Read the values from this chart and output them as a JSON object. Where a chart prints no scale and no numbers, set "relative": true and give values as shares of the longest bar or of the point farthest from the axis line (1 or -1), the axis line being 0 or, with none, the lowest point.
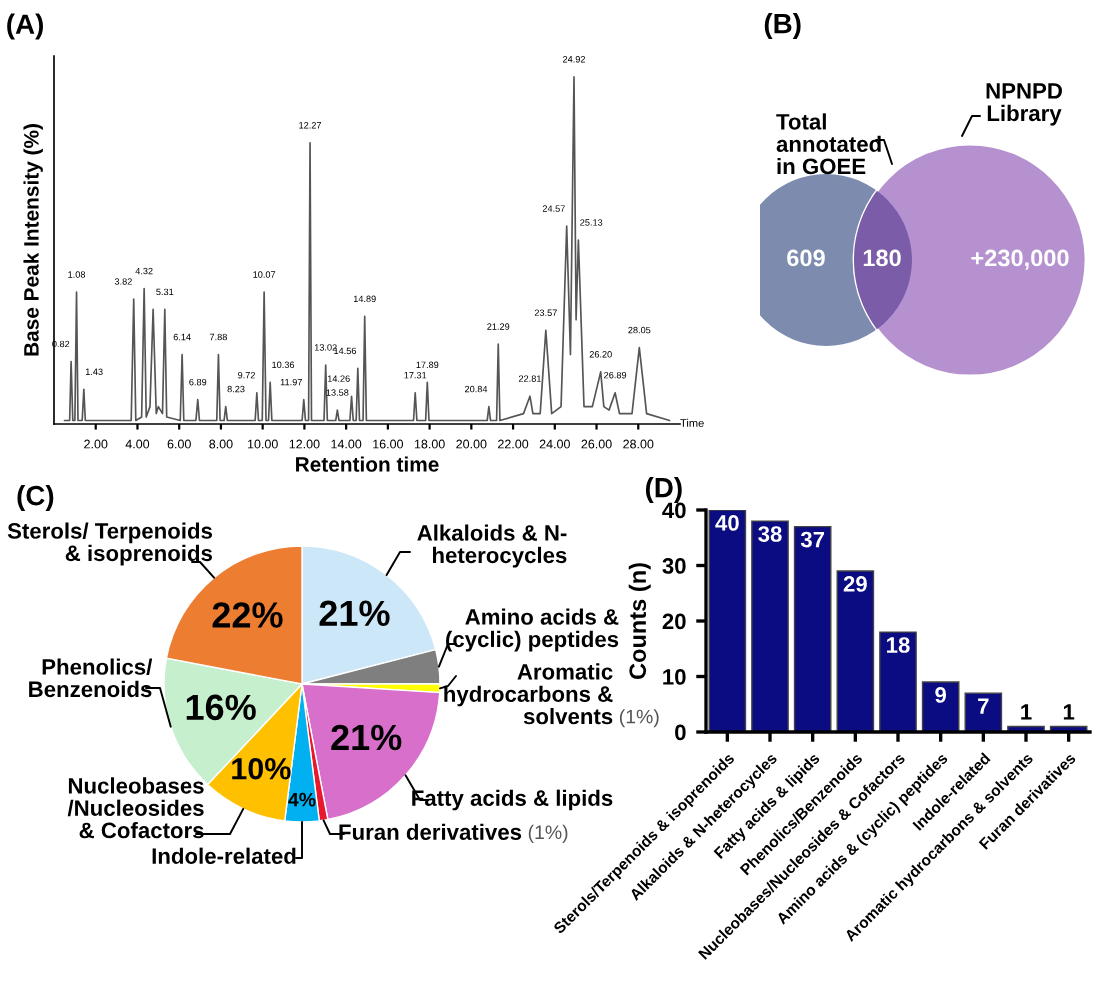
{
  "chart_data": [
    {
      "type": "line",
      "title": "(A)",
      "xlabel": "Retention time",
      "ylabel": "Base Peak Intensity (%)",
      "relative": true,
      "tick_labels": "x",
      "grid": false,
      "legend": false,
      "xlim": [
        0,
        30
      ],
      "xticks": [
        {
          "value": 2,
          "label": "2.00"
        },
        {
          "value": 4,
          "label": "4.00"
        },
        {
          "value": 6,
          "label": "6.00"
        },
        {
          "value": 8,
          "label": "8.00"
        },
        {
          "value": 10,
          "label": "10.00"
        },
        {
          "value": 12,
          "label": "12.00"
        },
        {
          "value": 14,
          "label": "14.00"
        },
        {
          "value": 16,
          "label": "16.00"
        },
        {
          "value": 18,
          "label": "18.00"
        },
        {
          "value": 20,
          "label": "20.00"
        },
        {
          "value": 22,
          "label": "22.00"
        },
        {
          "value": 24,
          "label": "24.00"
        },
        {
          "value": 26,
          "label": "26.00"
        },
        {
          "value": 28,
          "label": "28.00"
        }
      ],
      "series": [
        {
          "color": "#555555",
          "x": [
            0.5,
            0.75,
            0.82,
            0.9,
            1.0,
            1.08,
            1.15,
            1.35,
            1.43,
            1.5,
            3.7,
            3.82,
            3.92,
            4.2,
            4.32,
            4.42,
            4.6,
            4.75,
            4.9,
            5.0,
            5.2,
            5.31,
            5.4,
            6.05,
            6.14,
            6.22,
            6.8,
            6.89,
            6.97,
            7.8,
            7.88,
            7.96,
            8.15,
            8.23,
            8.31,
            9.64,
            9.72,
            9.8,
            9.98,
            10.07,
            10.16,
            10.28,
            10.36,
            10.44,
            11.89,
            11.97,
            12.05,
            12.2,
            12.27,
            12.34,
            12.94,
            13.02,
            13.1,
            13.5,
            13.58,
            13.66,
            14.18,
            14.26,
            14.34,
            14.48,
            14.56,
            14.64,
            14.81,
            14.89,
            14.97,
            17.23,
            17.31,
            17.39,
            17.81,
            17.89,
            17.97,
            20.76,
            20.84,
            20.92,
            21.21,
            21.29,
            21.37,
            22.5,
            22.81,
            22.95,
            23.3,
            23.57,
            23.85,
            24.3,
            24.57,
            24.75,
            24.92,
            25.02,
            25.13,
            25.4,
            25.8,
            26.2,
            26.35,
            26.6,
            26.89,
            27.1,
            27.7,
            28.05,
            28.4,
            29.5
          ],
          "values": [
            0.01,
            0.01,
            0.18,
            0.01,
            0.01,
            0.38,
            0.01,
            0.01,
            0.1,
            0.01,
            0.01,
            0.36,
            0.01,
            0.02,
            0.39,
            0.02,
            0.05,
            0.33,
            0.03,
            0.05,
            0.03,
            0.33,
            0.02,
            0.01,
            0.2,
            0.01,
            0.01,
            0.07,
            0.01,
            0.01,
            0.2,
            0.01,
            0.01,
            0.05,
            0.01,
            0.01,
            0.09,
            0.01,
            0.01,
            0.38,
            0.01,
            0.01,
            0.12,
            0.01,
            0.01,
            0.07,
            0.01,
            0.01,
            0.81,
            0.01,
            0.01,
            0.17,
            0.01,
            0.01,
            0.04,
            0.01,
            0.01,
            0.08,
            0.01,
            0.01,
            0.16,
            0.01,
            0.01,
            0.31,
            0.01,
            0.01,
            0.09,
            0.01,
            0.01,
            0.12,
            0.01,
            0.01,
            0.05,
            0.01,
            0.01,
            0.23,
            0.01,
            0.03,
            0.08,
            0.03,
            0.03,
            0.27,
            0.03,
            0.05,
            0.57,
            0.2,
            1,
            0.3,
            0.53,
            0.05,
            0.05,
            0.15,
            0.05,
            0.04,
            0.09,
            0.03,
            0.03,
            0.22,
            0.03,
            0.01
          ]
        }
      ],
      "annotations": [
        {
          "text": "0.82",
          "x": 0.82,
          "y": 0.18
        },
        {
          "text": "1.08",
          "x": 1.08,
          "y": 0.38
        },
        {
          "text": "1.43",
          "x": 1.43,
          "y": 0.1
        },
        {
          "text": "3.82",
          "x": 3.82,
          "y": 0.36
        },
        {
          "text": "4.32",
          "x": 4.32,
          "y": 0.39
        },
        {
          "text": "5.31",
          "x": 5.31,
          "y": 0.33
        },
        {
          "text": "6.14",
          "x": 6.14,
          "y": 0.2
        },
        {
          "text": "6.89",
          "x": 6.89,
          "y": 0.07
        },
        {
          "text": "7.88",
          "x": 7.88,
          "y": 0.2
        },
        {
          "text": "8.23",
          "x": 8.23,
          "y": 0.05
        },
        {
          "text": "9.72",
          "x": 9.72,
          "y": 0.09
        },
        {
          "text": "10.07",
          "x": 10.07,
          "y": 0.38
        },
        {
          "text": "10.36",
          "x": 10.36,
          "y": 0.12
        },
        {
          "text": "11.97",
          "x": 11.97,
          "y": 0.07
        },
        {
          "text": "12.27",
          "x": 12.27,
          "y": 0.81
        },
        {
          "text": "13.02",
          "x": 13.02,
          "y": 0.17
        },
        {
          "text": "13.58",
          "x": 13.58,
          "y": 0.04
        },
        {
          "text": "14.26",
          "x": 14.26,
          "y": 0.08
        },
        {
          "text": "14.56",
          "x": 14.56,
          "y": 0.16
        },
        {
          "text": "14.89",
          "x": 14.89,
          "y": 0.31
        },
        {
          "text": "17.31",
          "x": 17.31,
          "y": 0.09
        },
        {
          "text": "17.89",
          "x": 17.89,
          "y": 0.12
        },
        {
          "text": "20.84",
          "x": 20.84,
          "y": 0.05
        },
        {
          "text": "21.29",
          "x": 21.29,
          "y": 0.23
        },
        {
          "text": "22.81",
          "x": 22.81,
          "y": 0.08
        },
        {
          "text": "23.57",
          "x": 23.57,
          "y": 0.27
        },
        {
          "text": "24.57",
          "x": 24.57,
          "y": 0.57
        },
        {
          "text": "24.92",
          "x": 24.92,
          "y": 1
        },
        {
          "text": "25.13",
          "x": 25.13,
          "y": 0.53
        },
        {
          "text": "26.20",
          "x": 26.2,
          "y": 0.15
        },
        {
          "text": "26.89",
          "x": 26.89,
          "y": 0.09
        },
        {
          "text": "28.05",
          "x": 28.05,
          "y": 0.22
        },
        "Time"
      ]
    },
    {
      "type": "other",
      "title": "(B)",
      "categories": [
        "Total\nannotated\nin GOEE",
        "NPNPD\nLibrary"
      ],
      "value_labels": [
        "609",
        "180",
        "+230,000"
      ],
      "colors": [
        "#7c8bae",
        "#b592cf",
        "#7b5ca8"
      ]
    },
    {
      "type": "pie",
      "title": "(C)",
      "categories": [
        "Alkaloids & N-\nheterocycles",
        "Amino acids &\n(cyclic) peptides",
        "Aromatic\nhydrocarbons &\nsolvents",
        "Fatty acids & lipids",
        "Furan derivatives",
        "Indole-related",
        "Nucleobases\n/Nucleosides\n& Cofactors",
        "Phenolics/\nBenzenoids",
        "Sterols/ Terpenoids\n& isoprenoids"
      ],
      "values": [
        21,
        4,
        1,
        21,
        1,
        4,
        10,
        16,
        22
      ],
      "value_labels": [
        "21%",
        null,
        "(1%)",
        "21%",
        "(1%)",
        "4%",
        "10%",
        "16%",
        "22%"
      ],
      "colors": [
        "#cce8f8",
        "#7f7f7f",
        "#ffff00",
        "#d76fcb",
        "#e8192c",
        "#00b0f0",
        "#ffc000",
        "#c6efce",
        "#ed7d31"
      ]
    },
    {
      "type": "bar",
      "title": "(D)",
      "ylabel": "Counts (n)",
      "categories": [
        "Sterols/Terpenoids & isoprenoids",
        "Alkaloids & N-heterocycles",
        "Fatty acids & lipids",
        "Phenolics/Benzenoids",
        "Nucleobases/Nucleosides & Cofactors",
        "Amino acids & (cyclic) peptides",
        "Indole-related",
        "Aromatic hydrocarbons & solvents",
        "Furan derivatives"
      ],
      "values": [
        40,
        38,
        37,
        29,
        18,
        9,
        7,
        1,
        1
      ],
      "color": "#0b0b82",
      "data_labels": true,
      "ylim": [
        0,
        40
      ],
      "yticks": [
        0,
        10,
        20,
        30,
        40
      ],
      "grid": false,
      "legend": false
    }
  ]
}
